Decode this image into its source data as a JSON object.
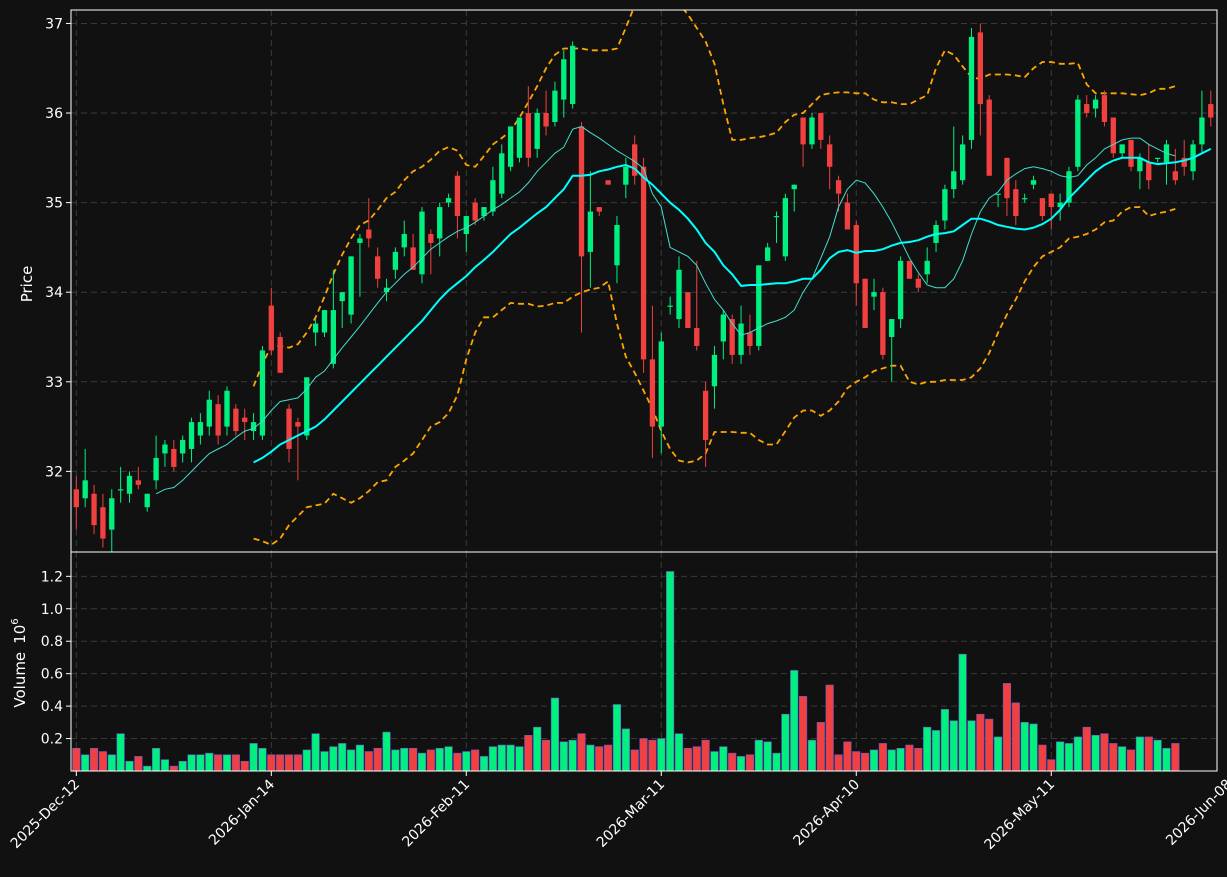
{
  "colors": {
    "background": "#111111",
    "axes_edge": "#ffffff",
    "grid": "#3a3a3a",
    "up": "#00f080",
    "down": "#f04040",
    "ma_fast": "#40e0d0",
    "ma_slow": "#00ffff",
    "bands": "#ffa500",
    "text": "#ffffff"
  },
  "chart_data": {
    "type": "candlestick",
    "ylabel_price": "Price",
    "ylabel_volume": "Volume",
    "volume_exponent_label": "10",
    "volume_exponent_power": "6",
    "x_tick_labels": [
      {
        "index": 0,
        "label": "2025-Dec-12"
      },
      {
        "index": 22,
        "label": "2026-Jan-14"
      },
      {
        "index": 44,
        "label": "2026-Feb-11"
      },
      {
        "index": 66,
        "label": "2026-Mar-11"
      },
      {
        "index": 88,
        "label": "2026-Apr-10"
      },
      {
        "index": 110,
        "label": "2026-May-11"
      },
      {
        "index": 130,
        "label": "2026-Jun-08"
      }
    ],
    "price_ylim": [
      31.1,
      37.15
    ],
    "price_ticks": [
      32,
      33,
      34,
      35,
      36,
      37
    ],
    "volume_ylim": [
      0,
      1.35
    ],
    "volume_ticks": [
      0.2,
      0.4,
      0.6,
      0.8,
      1.0,
      1.2
    ],
    "grid": true,
    "candles": [
      [
        31.8,
        31.95,
        31.35,
        31.6
      ],
      [
        31.7,
        32.25,
        31.6,
        31.9
      ],
      [
        31.75,
        31.85,
        31.3,
        31.4
      ],
      [
        31.6,
        31.75,
        31.15,
        31.25
      ],
      [
        31.35,
        31.8,
        31.1,
        31.7
      ],
      [
        31.8,
        32.05,
        31.65,
        31.8
      ],
      [
        31.75,
        32.0,
        31.65,
        31.95
      ],
      [
        31.9,
        32.05,
        31.8,
        31.85
      ],
      [
        31.6,
        31.75,
        31.55,
        31.75
      ],
      [
        31.9,
        32.4,
        31.8,
        32.15
      ],
      [
        32.2,
        32.35,
        32.05,
        32.3
      ],
      [
        32.25,
        32.35,
        32.0,
        32.05
      ],
      [
        32.2,
        32.4,
        32.1,
        32.35
      ],
      [
        32.25,
        32.6,
        32.1,
        32.55
      ],
      [
        32.4,
        32.65,
        32.3,
        32.55
      ],
      [
        32.5,
        32.9,
        32.4,
        32.8
      ],
      [
        32.75,
        32.85,
        32.3,
        32.4
      ],
      [
        32.5,
        32.95,
        32.4,
        32.9
      ],
      [
        32.7,
        32.75,
        32.4,
        32.45
      ],
      [
        32.6,
        32.7,
        32.35,
        32.55
      ],
      [
        32.45,
        32.65,
        32.35,
        32.55
      ],
      [
        32.4,
        33.4,
        32.35,
        33.35
      ],
      [
        33.85,
        34.05,
        33.3,
        33.35
      ],
      [
        33.5,
        33.55,
        33.1,
        33.1
      ],
      [
        32.7,
        32.75,
        32.1,
        32.25
      ],
      [
        32.55,
        32.6,
        31.9,
        32.5
      ],
      [
        32.4,
        33.05,
        32.35,
        33.05
      ],
      [
        33.55,
        33.7,
        33.4,
        33.65
      ],
      [
        33.55,
        33.8,
        33.5,
        33.8
      ],
      [
        33.2,
        34.25,
        33.15,
        33.8
      ],
      [
        33.9,
        34.0,
        33.6,
        34.0
      ],
      [
        33.75,
        34.4,
        33.65,
        34.4
      ],
      [
        34.55,
        34.65,
        33.95,
        34.6
      ],
      [
        34.7,
        35.05,
        34.5,
        34.6
      ],
      [
        34.4,
        34.5,
        34.05,
        34.15
      ],
      [
        34.0,
        34.15,
        33.9,
        34.05
      ],
      [
        34.25,
        34.5,
        34.15,
        34.45
      ],
      [
        34.5,
        34.8,
        34.4,
        34.65
      ],
      [
        34.5,
        34.65,
        34.25,
        34.25
      ],
      [
        34.2,
        34.95,
        34.1,
        34.9
      ],
      [
        34.65,
        34.7,
        34.2,
        34.55
      ],
      [
        34.6,
        35.0,
        34.4,
        34.95
      ],
      [
        35.0,
        35.1,
        34.95,
        35.05
      ],
      [
        35.3,
        35.35,
        34.6,
        34.85
      ],
      [
        34.65,
        34.85,
        34.45,
        34.85
      ],
      [
        35.0,
        35.05,
        34.75,
        34.8
      ],
      [
        34.85,
        34.95,
        34.8,
        34.95
      ],
      [
        34.9,
        35.4,
        34.85,
        35.25
      ],
      [
        35.1,
        35.65,
        35.05,
        35.55
      ],
      [
        35.4,
        35.85,
        35.35,
        35.85
      ],
      [
        35.5,
        35.95,
        35.45,
        35.95
      ],
      [
        36.0,
        36.3,
        35.4,
        35.5
      ],
      [
        35.6,
        36.05,
        35.5,
        36.0
      ],
      [
        36.0,
        36.25,
        35.75,
        35.85
      ],
      [
        35.9,
        36.35,
        35.85,
        36.25
      ],
      [
        36.15,
        36.7,
        35.95,
        36.6
      ],
      [
        36.1,
        36.8,
        36.05,
        36.75
      ],
      [
        35.85,
        35.9,
        33.55,
        34.4
      ],
      [
        34.45,
        35.35,
        34.05,
        34.9
      ],
      [
        34.95,
        34.95,
        34.85,
        34.9
      ],
      [
        35.25,
        35.25,
        35.2,
        35.2
      ],
      [
        34.3,
        34.85,
        34.1,
        34.75
      ],
      [
        35.2,
        35.5,
        35.05,
        35.4
      ],
      [
        35.65,
        35.75,
        35.2,
        35.3
      ],
      [
        35.4,
        35.5,
        33.1,
        33.25
      ],
      [
        33.25,
        33.85,
        32.15,
        32.5
      ],
      [
        32.5,
        33.55,
        32.2,
        33.45
      ],
      [
        33.85,
        33.95,
        33.75,
        33.85
      ],
      [
        33.7,
        34.4,
        33.6,
        34.25
      ],
      [
        34.0,
        34.0,
        33.6,
        33.6
      ],
      [
        33.6,
        34.35,
        33.35,
        33.4
      ],
      [
        32.9,
        33.0,
        32.05,
        32.35
      ],
      [
        32.95,
        33.4,
        32.7,
        33.3
      ],
      [
        33.45,
        33.8,
        33.25,
        33.75
      ],
      [
        33.7,
        33.75,
        33.2,
        33.3
      ],
      [
        33.3,
        33.85,
        33.2,
        33.65
      ],
      [
        33.55,
        33.75,
        33.3,
        33.4
      ],
      [
        33.4,
        34.3,
        33.35,
        34.3
      ],
      [
        34.35,
        34.55,
        34.35,
        34.5
      ],
      [
        34.85,
        34.9,
        34.55,
        34.85
      ],
      [
        34.4,
        35.1,
        34.35,
        35.05
      ],
      [
        35.15,
        35.2,
        34.9,
        35.2
      ],
      [
        35.95,
        35.95,
        35.4,
        35.65
      ],
      [
        35.65,
        36.0,
        35.6,
        35.95
      ],
      [
        36.0,
        36.0,
        35.6,
        35.7
      ],
      [
        35.65,
        35.75,
        35.15,
        35.4
      ],
      [
        35.25,
        35.3,
        34.9,
        35.1
      ],
      [
        35.0,
        35.1,
        34.7,
        34.7
      ],
      [
        34.75,
        34.8,
        33.85,
        34.1
      ],
      [
        34.15,
        34.15,
        33.6,
        33.6
      ],
      [
        33.95,
        34.15,
        33.8,
        34.0
      ],
      [
        34.0,
        34.05,
        33.25,
        33.3
      ],
      [
        33.5,
        33.7,
        33.0,
        33.7
      ],
      [
        33.7,
        34.4,
        33.6,
        34.35
      ],
      [
        34.35,
        34.35,
        34.15,
        34.15
      ],
      [
        34.15,
        34.2,
        34.0,
        34.05
      ],
      [
        34.2,
        34.5,
        34.1,
        34.35
      ],
      [
        34.55,
        34.8,
        34.45,
        34.75
      ],
      [
        34.8,
        35.2,
        34.7,
        35.15
      ],
      [
        35.15,
        35.85,
        35.05,
        35.35
      ],
      [
        35.25,
        35.75,
        35.2,
        35.65
      ],
      [
        35.7,
        36.95,
        35.6,
        36.85
      ],
      [
        36.9,
        37.0,
        35.75,
        36.1
      ],
      [
        36.15,
        36.2,
        35.3,
        35.3
      ],
      [
        35.1,
        35.1,
        34.95,
        35.1
      ],
      [
        35.5,
        35.5,
        34.85,
        35.05
      ],
      [
        35.15,
        35.25,
        34.75,
        34.85
      ],
      [
        35.05,
        35.1,
        35.0,
        35.05
      ],
      [
        35.2,
        35.3,
        35.15,
        35.25
      ],
      [
        35.05,
        35.05,
        34.8,
        34.85
      ],
      [
        35.1,
        35.1,
        34.7,
        34.95
      ],
      [
        34.95,
        35.1,
        34.8,
        35.0
      ],
      [
        35.0,
        35.4,
        34.95,
        35.35
      ],
      [
        35.4,
        36.2,
        35.35,
        36.15
      ],
      [
        36.1,
        36.2,
        35.95,
        36.0
      ],
      [
        36.05,
        36.2,
        35.95,
        36.15
      ],
      [
        36.2,
        36.25,
        35.85,
        35.9
      ],
      [
        35.95,
        35.95,
        35.5,
        35.55
      ],
      [
        35.55,
        35.65,
        35.5,
        35.65
      ],
      [
        35.7,
        35.7,
        35.35,
        35.4
      ],
      [
        35.35,
        35.55,
        35.15,
        35.5
      ],
      [
        35.45,
        35.65,
        35.15,
        35.25
      ],
      [
        35.5,
        35.5,
        35.45,
        35.5
      ],
      [
        35.45,
        35.7,
        35.2,
        35.65
      ],
      [
        35.35,
        35.6,
        35.2,
        35.25
      ],
      [
        35.5,
        35.7,
        35.3,
        35.4
      ],
      [
        35.35,
        35.7,
        35.25,
        35.65
      ],
      [
        35.65,
        36.25,
        35.55,
        35.95
      ],
      [
        36.1,
        36.25,
        35.85,
        35.95
      ]
    ],
    "volume": [
      0.14,
      0.1,
      0.14,
      0.12,
      0.1,
      0.23,
      0.06,
      0.09,
      0.03,
      0.14,
      0.07,
      0.03,
      0.06,
      0.1,
      0.1,
      0.11,
      0.1,
      0.1,
      0.1,
      0.06,
      0.17,
      0.14,
      0.1,
      0.1,
      0.1,
      0.1,
      0.13,
      0.23,
      0.12,
      0.15,
      0.17,
      0.13,
      0.16,
      0.12,
      0.14,
      0.24,
      0.13,
      0.14,
      0.14,
      0.11,
      0.13,
      0.14,
      0.15,
      0.11,
      0.12,
      0.13,
      0.09,
      0.15,
      0.16,
      0.16,
      0.15,
      0.22,
      0.27,
      0.19,
      0.45,
      0.18,
      0.19,
      0.23,
      0.16,
      0.15,
      0.16,
      0.41,
      0.26,
      0.13,
      0.2,
      0.19,
      0.2,
      1.23,
      0.23,
      0.14,
      0.15,
      0.19,
      0.12,
      0.15,
      0.11,
      0.09,
      0.1,
      0.19,
      0.18,
      0.11,
      0.35,
      0.62,
      0.46,
      0.19,
      0.3,
      0.53,
      0.1,
      0.18,
      0.12,
      0.11,
      0.13,
      0.17,
      0.13,
      0.14,
      0.16,
      0.14,
      0.27,
      0.25,
      0.38,
      0.31,
      0.72,
      0.31,
      0.35,
      0.32,
      0.21,
      0.54,
      0.42,
      0.3,
      0.29,
      0.16,
      0.07,
      0.18,
      0.17,
      0.21,
      0.27,
      0.22,
      0.23,
      0.17,
      0.15,
      0.13,
      0.21,
      0.21,
      0.19,
      0.14,
      0.17
    ],
    "ma_fast": [
      null,
      null,
      null,
      null,
      null,
      null,
      null,
      null,
      null,
      31.75,
      31.8,
      31.82,
      31.9,
      32.0,
      32.1,
      32.2,
      32.25,
      32.3,
      32.38,
      32.45,
      32.48,
      32.56,
      32.68,
      32.78,
      32.8,
      32.82,
      32.92,
      33.05,
      33.12,
      33.25,
      33.38,
      33.5,
      33.62,
      33.75,
      33.88,
      34.0,
      34.1,
      34.2,
      34.28,
      34.38,
      34.48,
      34.55,
      34.62,
      34.68,
      34.72,
      34.78,
      34.85,
      34.92,
      34.98,
      35.05,
      35.12,
      35.22,
      35.35,
      35.45,
      35.55,
      35.62,
      35.82,
      35.85,
      35.78,
      35.72,
      35.65,
      35.58,
      35.52,
      35.46,
      35.38,
      35.1,
      34.95,
      34.5,
      34.45,
      34.4,
      34.3,
      34.1,
      33.92,
      33.8,
      33.65,
      33.52,
      33.55,
      33.6,
      33.65,
      33.68,
      33.72,
      33.8,
      34.0,
      34.15,
      34.38,
      34.62,
      34.95,
      35.15,
      35.25,
      35.22,
      35.1,
      34.95,
      34.78,
      34.58,
      34.38,
      34.22,
      34.08,
      34.05,
      34.05,
      34.15,
      34.35,
      34.65,
      34.9,
      35.05,
      35.12,
      35.25,
      35.32,
      35.38,
      35.4,
      35.38,
      35.35,
      35.3,
      35.28,
      35.3,
      35.42,
      35.5,
      35.6,
      35.65,
      35.7,
      35.72,
      35.72,
      35.65,
      35.6,
      35.55,
      35.52
    ],
    "ma_slow": [
      null,
      null,
      null,
      null,
      null,
      null,
      null,
      null,
      null,
      null,
      null,
      null,
      null,
      null,
      null,
      null,
      null,
      null,
      null,
      null,
      32.1,
      32.15,
      32.22,
      32.3,
      32.35,
      32.4,
      32.45,
      32.5,
      32.58,
      32.68,
      32.78,
      32.88,
      32.98,
      33.08,
      33.18,
      33.28,
      33.38,
      33.48,
      33.58,
      33.68,
      33.8,
      33.92,
      34.02,
      34.1,
      34.18,
      34.28,
      34.36,
      34.45,
      34.55,
      34.65,
      34.72,
      34.8,
      34.88,
      34.95,
      35.05,
      35.15,
      35.3,
      35.3,
      35.31,
      35.35,
      35.37,
      35.4,
      35.42,
      35.38,
      35.28,
      35.2,
      35.1,
      35.0,
      34.92,
      34.82,
      34.7,
      34.55,
      34.45,
      34.3,
      34.2,
      34.07,
      34.08,
      34.08,
      34.09,
      34.1,
      34.1,
      34.12,
      34.15,
      34.15,
      34.25,
      34.38,
      34.45,
      34.47,
      34.44,
      34.46,
      34.46,
      34.48,
      34.52,
      34.55,
      34.56,
      34.58,
      34.62,
      34.65,
      34.66,
      34.68,
      34.75,
      34.82,
      34.82,
      34.79,
      34.75,
      34.73,
      34.71,
      34.7,
      34.72,
      34.76,
      34.82,
      34.92,
      35.05,
      35.15,
      35.25,
      35.35,
      35.42,
      35.47,
      35.5,
      35.5,
      35.5,
      35.45,
      35.43,
      35.44,
      35.45,
      35.47,
      35.5,
      35.55,
      35.6
    ],
    "band_upper": [
      null,
      null,
      null,
      null,
      null,
      null,
      null,
      null,
      null,
      null,
      null,
      null,
      null,
      null,
      null,
      null,
      null,
      null,
      null,
      null,
      32.95,
      33.2,
      33.4,
      33.4,
      33.38,
      33.42,
      33.55,
      33.72,
      33.95,
      34.2,
      34.42,
      34.6,
      34.75,
      34.8,
      34.92,
      35.05,
      35.12,
      35.25,
      35.35,
      35.4,
      35.48,
      35.58,
      35.62,
      35.58,
      35.42,
      35.4,
      35.52,
      35.65,
      35.72,
      35.8,
      35.95,
      36.12,
      36.3,
      36.5,
      36.65,
      36.72,
      36.72,
      36.72,
      36.7,
      36.7,
      36.7,
      36.72,
      36.95,
      37.2,
      37.3,
      37.35,
      37.33,
      37.3,
      37.22,
      37.1,
      36.95,
      36.8,
      36.55,
      36.1,
      35.7,
      35.7,
      35.72,
      35.73,
      35.75,
      35.78,
      35.9,
      35.98,
      36.0,
      36.1,
      36.2,
      36.22,
      36.23,
      36.23,
      36.22,
      36.22,
      36.15,
      36.12,
      36.12,
      36.1,
      36.1,
      36.15,
      36.2,
      36.5,
      36.7,
      36.65,
      36.52,
      36.4,
      36.38,
      36.43,
      36.43,
      36.43,
      36.42,
      36.4,
      36.5,
      36.57,
      36.57,
      36.55,
      36.55,
      36.56,
      36.32,
      36.22,
      36.22,
      36.22,
      36.22,
      36.21,
      36.2,
      36.22,
      36.27,
      36.27,
      36.3
    ],
    "band_lower": [
      null,
      null,
      null,
      null,
      null,
      null,
      null,
      null,
      null,
      null,
      null,
      null,
      null,
      null,
      null,
      null,
      null,
      null,
      null,
      null,
      31.25,
      31.22,
      31.18,
      31.25,
      31.4,
      31.5,
      31.6,
      31.62,
      31.64,
      31.75,
      31.7,
      31.65,
      31.7,
      31.78,
      31.88,
      31.9,
      32.05,
      32.12,
      32.2,
      32.35,
      32.5,
      32.55,
      32.65,
      32.85,
      33.25,
      33.55,
      33.72,
      33.72,
      33.8,
      33.88,
      33.87,
      33.87,
      33.84,
      33.85,
      33.88,
      33.88,
      33.95,
      34.0,
      34.03,
      34.05,
      34.12,
      33.65,
      33.28,
      33.1,
      32.9,
      32.7,
      32.45,
      32.25,
      32.12,
      32.1,
      32.12,
      32.2,
      32.44,
      32.44,
      32.44,
      32.43,
      32.43,
      32.35,
      32.3,
      32.3,
      32.45,
      32.6,
      32.68,
      32.68,
      32.62,
      32.68,
      32.78,
      32.93,
      33.0,
      33.05,
      33.12,
      33.15,
      33.18,
      33.18,
      33.0,
      32.97,
      33.0,
      33.0,
      33.02,
      33.02,
      33.02,
      33.05,
      33.15,
      33.32,
      33.55,
      33.75,
      33.92,
      34.12,
      34.28,
      34.4,
      34.45,
      34.5,
      34.6,
      34.62,
      34.65,
      34.7,
      34.78,
      34.8,
      34.9,
      34.95,
      34.95,
      34.85,
      34.88,
      34.9,
      34.93
    ]
  }
}
